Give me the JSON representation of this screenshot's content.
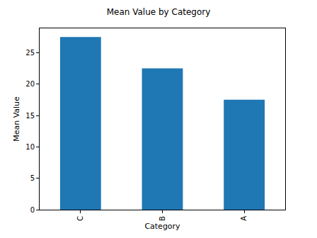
{
  "chart_data": {
    "type": "bar",
    "title": "Mean Value by Category",
    "x_label": "Category",
    "y_label": "Mean Value",
    "categories": [
      "C",
      "B",
      "A"
    ],
    "values": [
      27.5,
      22.5,
      17.5
    ],
    "color": "#1f77b4",
    "ylim": [
      0,
      28.875
    ],
    "yticks": [
      0,
      5,
      10,
      15,
      20,
      25
    ],
    "grid": false
  }
}
